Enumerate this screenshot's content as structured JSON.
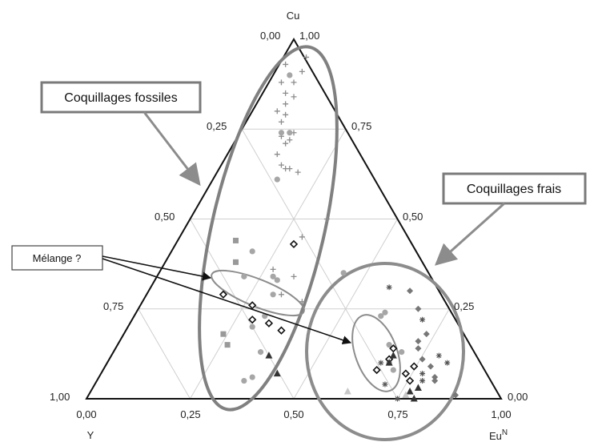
{
  "chart_data": {
    "type": "scatter",
    "subtype": "ternary",
    "title": "",
    "corners": {
      "top": "Cu",
      "bottom_left": "Y",
      "bottom_right": "Eu",
      "bottom_right_sup": "N"
    },
    "ticks": {
      "left": [
        "0,00",
        "0,25",
        "0,50",
        "0,75",
        "1,00"
      ],
      "right": [
        "1,00",
        "0,75",
        "0,50",
        "0,25",
        "0,00"
      ],
      "bottom": [
        "0,00",
        "0,25",
        "0,50",
        "0,75",
        "1,00"
      ]
    },
    "grid": true,
    "annotations": {
      "fossil": "Coquillages fossiles",
      "fresh": "Coquillages frais",
      "mix": "Mélange ?"
    },
    "series": [
      {
        "marker": "plus",
        "color": "#8c8c8c",
        "points": [
          [
            0.53,
            0.95
          ],
          [
            0.48,
            0.93
          ],
          [
            0.52,
            0.91
          ],
          [
            0.47,
            0.88
          ],
          [
            0.5,
            0.88
          ],
          [
            0.48,
            0.85
          ],
          [
            0.5,
            0.84
          ],
          [
            0.48,
            0.82
          ],
          [
            0.46,
            0.8
          ],
          [
            0.48,
            0.79
          ],
          [
            0.47,
            0.77
          ],
          [
            0.5,
            0.74
          ],
          [
            0.47,
            0.73
          ],
          [
            0.49,
            0.72
          ],
          [
            0.48,
            0.71
          ],
          [
            0.46,
            0.68
          ],
          [
            0.47,
            0.65
          ],
          [
            0.48,
            0.64
          ],
          [
            0.49,
            0.64
          ],
          [
            0.51,
            0.63
          ],
          [
            0.58,
            0.5
          ],
          [
            0.52,
            0.45
          ],
          [
            0.45,
            0.36
          ],
          [
            0.5,
            0.34
          ],
          [
            0.47,
            0.29
          ],
          [
            0.52,
            0.27
          ]
        ]
      },
      {
        "marker": "circle",
        "color": "#a6a6a6",
        "points": [
          [
            0.49,
            0.9
          ],
          [
            0.49,
            0.74
          ],
          [
            0.47,
            0.74
          ],
          [
            0.46,
            0.61
          ],
          [
            0.4,
            0.41
          ],
          [
            0.38,
            0.34
          ],
          [
            0.45,
            0.34
          ],
          [
            0.46,
            0.33
          ],
          [
            0.45,
            0.29
          ],
          [
            0.43,
            0.23
          ],
          [
            0.4,
            0.2
          ],
          [
            0.42,
            0.13
          ],
          [
            0.38,
            0.05
          ],
          [
            0.4,
            0.06
          ],
          [
            0.62,
            0.35
          ],
          [
            0.72,
            0.24
          ],
          [
            0.71,
            0.23
          ],
          [
            0.73,
            0.15
          ],
          [
            0.74,
            0.08
          ],
          [
            0.76,
            0.13
          ],
          [
            0.73,
            0.1
          ]
        ]
      },
      {
        "marker": "square",
        "color": "#999999",
        "points": [
          [
            0.36,
            0.44
          ],
          [
            0.36,
            0.38
          ],
          [
            0.33,
            0.18
          ],
          [
            0.34,
            0.15
          ]
        ]
      },
      {
        "marker": "diamond-open",
        "color": "#111111",
        "points": [
          [
            0.5,
            0.43
          ],
          [
            0.33,
            0.29
          ],
          [
            0.4,
            0.26
          ],
          [
            0.4,
            0.22
          ],
          [
            0.44,
            0.21
          ],
          [
            0.47,
            0.19
          ],
          [
            0.74,
            0.14
          ],
          [
            0.73,
            0.11
          ],
          [
            0.7,
            0.08
          ],
          [
            0.77,
            0.07
          ],
          [
            0.79,
            0.09
          ],
          [
            0.78,
            0.05
          ]
        ]
      },
      {
        "marker": "diamond",
        "color": "#777777",
        "points": [
          [
            0.8,
            0.25
          ],
          [
            0.78,
            0.3
          ],
          [
            0.82,
            0.18
          ],
          [
            0.8,
            0.16
          ],
          [
            0.8,
            0.14
          ],
          [
            0.83,
            0.09
          ],
          [
            0.84,
            0.05
          ],
          [
            0.84,
            0.06
          ],
          [
            0.89,
            0.01
          ],
          [
            0.81,
            0.11
          ]
        ]
      },
      {
        "marker": "asterisk",
        "color": "#555555",
        "points": [
          [
            0.73,
            0.31
          ],
          [
            0.81,
            0.22
          ],
          [
            0.85,
            0.12
          ],
          [
            0.87,
            0.1
          ],
          [
            0.81,
            0.07
          ],
          [
            0.71,
            0.1
          ],
          [
            0.75,
            0.0
          ],
          [
            0.81,
            0.05
          ],
          [
            0.72,
            0.04
          ]
        ]
      },
      {
        "marker": "triangle",
        "color": "#333333",
        "points": [
          [
            0.44,
            0.12
          ],
          [
            0.46,
            0.07
          ],
          [
            0.74,
            0.12
          ],
          [
            0.73,
            0.1
          ],
          [
            0.78,
            0.02
          ],
          [
            0.8,
            0.03
          ],
          [
            0.79,
            0.0
          ]
        ]
      },
      {
        "marker": "triangle",
        "color": "#c8c8c8",
        "points": [
          [
            0.63,
            0.02
          ],
          [
            0.77,
            0.01
          ]
        ]
      }
    ]
  }
}
